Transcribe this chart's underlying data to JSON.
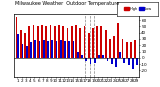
{
  "title": "Milwaukee Weather  Outdoor Temperature",
  "subtitle": "Daily High/Low",
  "highs": [
    65,
    45,
    40,
    50,
    52,
    50,
    52,
    50,
    52,
    50,
    52,
    50,
    48,
    50,
    52,
    48,
    50,
    40,
    48,
    50,
    50,
    45,
    30,
    35,
    55,
    30,
    25,
    25,
    28
  ],
  "lows": [
    38,
    22,
    18,
    25,
    28,
    26,
    28,
    26,
    28,
    26,
    28,
    26,
    26,
    26,
    10,
    5,
    -5,
    -10,
    -8,
    5,
    5,
    -5,
    -10,
    -15,
    10,
    -8,
    -12,
    -18,
    -12
  ],
  "high_color": "#cc0000",
  "low_color": "#0000cc",
  "background": "#ffffff",
  "plot_bg": "#ffffff",
  "ylim_min": -30,
  "ylim_max": 70,
  "yticks": [
    -20,
    -10,
    0,
    10,
    20,
    30,
    40,
    50,
    60
  ],
  "zero_line_color": "#000000",
  "dashed_vline_positions": [
    16,
    17,
    18
  ],
  "legend_high_label": "High",
  "legend_low_label": "Low",
  "tick_fontsize": 3.0,
  "title_fontsize": 3.5,
  "bar_width": 0.42,
  "spine_linewidth": 0.5
}
